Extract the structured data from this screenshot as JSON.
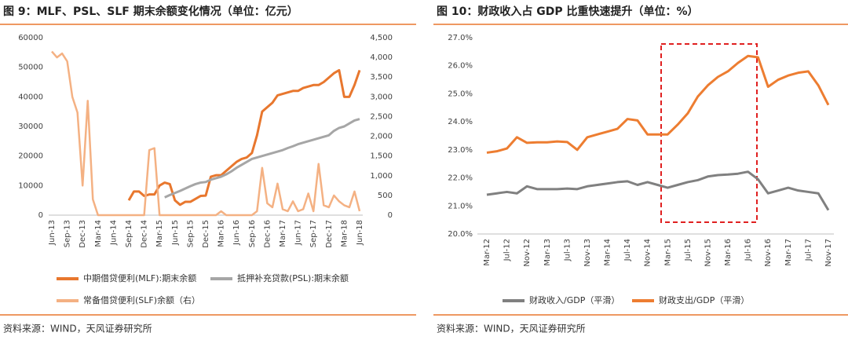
{
  "chart_data": [
    {
      "type": "line",
      "title": "图 9：MLF、PSL、SLF 期末余额变化情况（单位：亿元）",
      "source": "资料来源：WIND，天风证券研究所",
      "categories": [
        "Jun-13",
        null,
        null,
        "Sep-13",
        null,
        null,
        "Dec-13",
        null,
        null,
        "Mar-14",
        null,
        null,
        "Jun-14",
        null,
        null,
        "Sep-14",
        null,
        null,
        "Dec-14",
        null,
        null,
        "Mar-15",
        null,
        null,
        "Jun-15",
        null,
        null,
        "Sep-15",
        null,
        null,
        "Dec-15",
        null,
        null,
        "Mar-16",
        null,
        null,
        "Jun-16",
        null,
        null,
        "Sep-16",
        null,
        null,
        "Dec-16",
        null,
        null,
        "Mar-17",
        null,
        null,
        "Jun-17",
        null,
        null,
        "Sep-17",
        null,
        null,
        "Dec-17",
        null,
        null,
        "Mar-18",
        null,
        null,
        "Jun-18"
      ],
      "ylim": [
        0,
        60000
      ],
      "yticks": [
        0,
        10000,
        20000,
        30000,
        40000,
        50000,
        60000
      ],
      "y2lim": [
        0,
        4500
      ],
      "y2ticks": [
        0,
        500,
        {
          "value": 1000,
          "label": "1,000"
        },
        {
          "value": 1500,
          "label": "1,500"
        },
        {
          "value": 2000,
          "label": "2,000"
        },
        {
          "value": 2500,
          "label": "2,500"
        },
        {
          "value": 3000,
          "label": "3,000"
        },
        {
          "value": 3500,
          "label": "3,500"
        },
        {
          "value": 4000,
          "label": "4,000"
        },
        {
          "value": 4500,
          "label": "4,500"
        }
      ],
      "series": [
        {
          "name": "中期借贷便利(MLF):期末余额",
          "color": "#e8772e",
          "values": [
            null,
            null,
            null,
            null,
            null,
            null,
            null,
            null,
            null,
            null,
            null,
            null,
            null,
            null,
            null,
            5000,
            8000,
            8000,
            6500,
            7000,
            7000,
            10000,
            11000,
            10500,
            5000,
            3500,
            4500,
            4500,
            5500,
            6500,
            6600,
            13000,
            13500,
            13500,
            15000,
            16500,
            18000,
            19000,
            19500,
            21000,
            27000,
            35000,
            36500,
            38000,
            40500,
            41000,
            41500,
            42000,
            42000,
            43000,
            43500,
            44000,
            44000,
            45000,
            46500,
            48000,
            49000,
            40000,
            40000,
            44000,
            49000
          ]
        },
        {
          "name": "抵押补充贷款(PSL):期末余额",
          "color": "#a6a6a6",
          "values": [
            null,
            null,
            null,
            null,
            null,
            null,
            null,
            null,
            null,
            null,
            null,
            null,
            null,
            null,
            null,
            null,
            null,
            null,
            null,
            null,
            null,
            null,
            6000,
            6800,
            7500,
            8200,
            9000,
            9800,
            10500,
            11000,
            11200,
            12000,
            12500,
            13000,
            13800,
            14800,
            16000,
            17000,
            18000,
            19000,
            19500,
            20000,
            20500,
            21000,
            21500,
            22000,
            22700,
            23300,
            24000,
            24500,
            25000,
            25500,
            26000,
            26500,
            27000,
            28500,
            29500,
            30000,
            31000,
            32000,
            32500
          ]
        },
        {
          "name": "常备借贷便利(SLF)余额（右）",
          "color": "#f4b183",
          "axis": "y2",
          "values": [
            4150,
            4000,
            4100,
            3900,
            3000,
            2600,
            750,
            2900,
            400,
            0,
            0,
            0,
            0,
            0,
            0,
            0,
            0,
            0,
            0,
            1650,
            1700,
            0,
            0,
            0,
            0,
            0,
            0,
            0,
            0,
            0,
            0,
            0,
            0,
            100,
            0,
            0,
            0,
            0,
            0,
            0,
            100,
            1200,
            300,
            200,
            800,
            150,
            100,
            350,
            100,
            150,
            550,
            100,
            1300,
            250,
            200,
            500,
            350,
            250,
            200,
            600,
            100
          ]
        }
      ]
    },
    {
      "type": "line",
      "title": "图 10：财政收入占 GDP 比重快速提升（单位：%）",
      "source": "资料来源：WIND，天风证券研究所",
      "categories": [
        "Mar-12",
        null,
        "Jul-12",
        null,
        "Nov-12",
        null,
        "Mar-13",
        null,
        "Jul-13",
        null,
        "Nov-13",
        null,
        "Mar-14",
        null,
        "Jul-14",
        null,
        "Nov-14",
        null,
        "Mar-15",
        null,
        "Jul-15",
        null,
        "Nov-15",
        null,
        "Mar-16",
        null,
        "Jul-16",
        null,
        "Nov-16",
        null,
        "Mar-17",
        null,
        "Jul-17",
        null,
        "Nov-17"
      ],
      "ylim": [
        20,
        27
      ],
      "yticks": [
        {
          "value": 20,
          "label": "20.0%"
        },
        {
          "value": 21,
          "label": "21.0%"
        },
        {
          "value": 22,
          "label": "22.0%"
        },
        {
          "value": 23,
          "label": "23.0%"
        },
        {
          "value": 24,
          "label": "24.0%"
        },
        {
          "value": 25,
          "label": "25.0%"
        },
        {
          "value": 26,
          "label": "26.0%"
        },
        {
          "value": 27,
          "label": "27.0%"
        }
      ],
      "series": [
        {
          "name": "财政收入/GDP（平滑）",
          "color": "#808080",
          "values": [
            21.4,
            21.45,
            21.5,
            21.45,
            21.7,
            21.6,
            21.6,
            21.6,
            21.62,
            21.6,
            21.7,
            21.75,
            21.8,
            21.85,
            21.88,
            21.75,
            21.85,
            21.75,
            21.65,
            21.75,
            21.85,
            21.92,
            22.05,
            22.1,
            22.12,
            22.15,
            22.22,
            21.95,
            21.45,
            21.55,
            21.65,
            21.55,
            21.5,
            21.45,
            20.85
          ]
        },
        {
          "name": "财政支出/GDP（平滑）",
          "color": "#ed7d31",
          "values": [
            22.9,
            22.95,
            23.05,
            23.45,
            23.25,
            23.27,
            23.27,
            23.3,
            23.28,
            23.0,
            23.45,
            23.55,
            23.65,
            23.75,
            24.1,
            24.05,
            23.55,
            23.55,
            23.55,
            23.9,
            24.3,
            24.9,
            25.3,
            25.6,
            25.8,
            26.1,
            26.35,
            26.3,
            25.25,
            25.5,
            25.65,
            25.75,
            25.8,
            25.3,
            24.6
          ]
        }
      ]
    }
  ]
}
